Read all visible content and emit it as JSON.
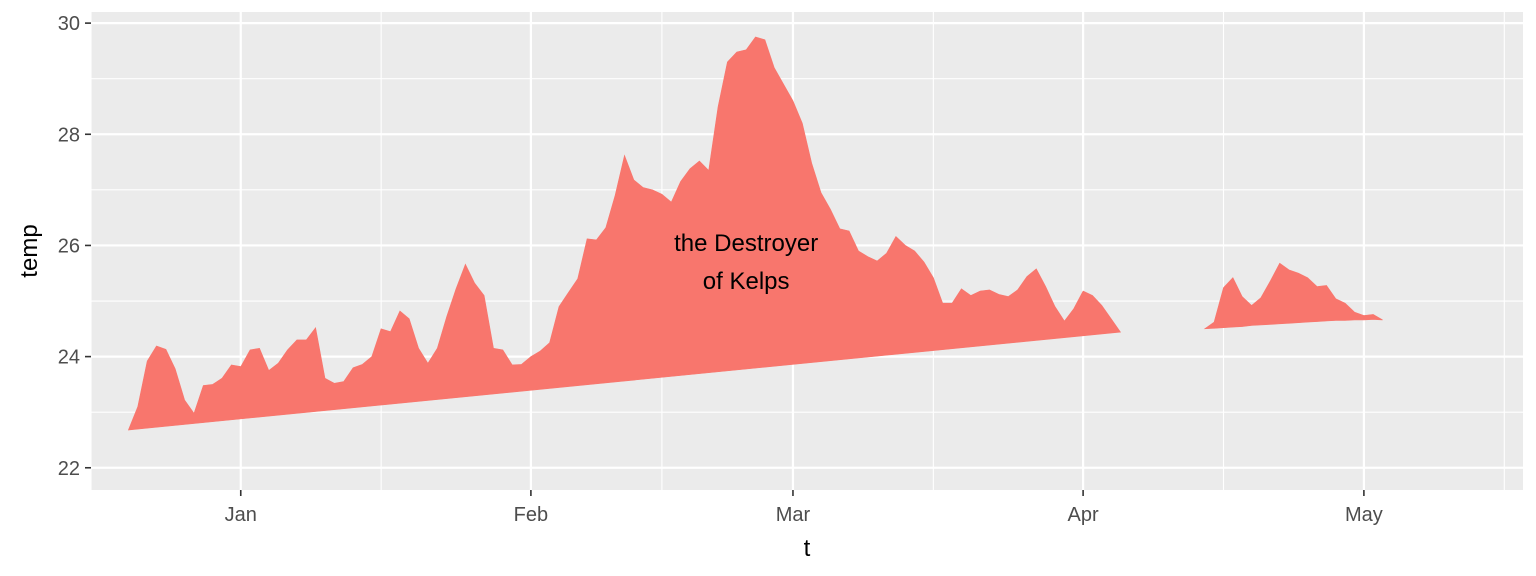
{
  "chart_data": {
    "type": "area",
    "xlabel": "t",
    "ylabel": "temp",
    "x_axis": {
      "type": "date",
      "range": [
        "2017-12-16",
        "2018-05-18"
      ],
      "tick_labels": [
        {
          "date": "2018-01-01",
          "label": "Jan"
        },
        {
          "date": "2018-02-01",
          "label": "Feb"
        },
        {
          "date": "2018-03-01",
          "label": "Mar"
        },
        {
          "date": "2018-04-01",
          "label": "Apr"
        },
        {
          "date": "2018-05-01",
          "label": "May"
        }
      ],
      "minor_breaks": [
        "2017-12-16",
        "2018-01-16",
        "2018-02-15",
        "2018-03-16",
        "2018-04-16",
        "2018-05-16"
      ]
    },
    "y_axis": {
      "range": [
        21.6,
        30.2
      ],
      "ticks": [
        22,
        24,
        26,
        28,
        30
      ],
      "minor_breaks": [
        23,
        25,
        27,
        29
      ]
    },
    "grid": true,
    "legend": "none",
    "fill_color": "#F8766D",
    "panel_color": "#EBEBEB",
    "series": [
      {
        "segment": 1,
        "x": [
          "2017-12-20",
          "2017-12-21",
          "2017-12-22",
          "2017-12-23",
          "2017-12-24",
          "2017-12-25",
          "2017-12-26",
          "2017-12-27",
          "2017-12-28",
          "2017-12-29",
          "2017-12-30",
          "2017-12-31",
          "2018-01-01",
          "2018-01-02",
          "2018-01-03",
          "2018-01-04",
          "2018-01-05",
          "2018-01-06",
          "2018-01-07",
          "2018-01-08",
          "2018-01-09",
          "2018-01-10",
          "2018-01-11",
          "2018-01-12",
          "2018-01-13",
          "2018-01-14",
          "2018-01-15",
          "2018-01-16",
          "2018-01-17",
          "2018-01-18",
          "2018-01-19",
          "2018-01-20",
          "2018-01-21",
          "2018-01-22",
          "2018-01-23",
          "2018-01-24",
          "2018-01-25",
          "2018-01-26",
          "2018-01-27",
          "2018-01-28",
          "2018-01-29",
          "2018-01-30",
          "2018-01-31",
          "2018-02-01",
          "2018-02-02",
          "2018-02-03",
          "2018-02-04",
          "2018-02-05",
          "2018-02-06",
          "2018-02-07",
          "2018-02-08",
          "2018-02-09",
          "2018-02-10",
          "2018-02-11",
          "2018-02-12",
          "2018-02-13",
          "2018-02-14",
          "2018-02-15",
          "2018-02-16",
          "2018-02-17",
          "2018-02-18",
          "2018-02-19",
          "2018-02-20",
          "2018-02-21",
          "2018-02-22",
          "2018-02-23",
          "2018-02-24",
          "2018-02-25",
          "2018-02-26",
          "2018-02-27",
          "2018-02-28",
          "2018-03-01",
          "2018-03-02",
          "2018-03-03",
          "2018-03-04",
          "2018-03-05",
          "2018-03-06",
          "2018-03-07",
          "2018-03-08",
          "2018-03-09",
          "2018-03-10",
          "2018-03-11",
          "2018-03-12",
          "2018-03-13",
          "2018-03-14",
          "2018-03-15",
          "2018-03-16",
          "2018-03-17",
          "2018-03-18",
          "2018-03-19",
          "2018-03-20",
          "2018-03-21",
          "2018-03-22",
          "2018-03-23",
          "2018-03-24",
          "2018-03-25",
          "2018-03-26",
          "2018-03-27",
          "2018-03-28",
          "2018-03-29",
          "2018-03-30",
          "2018-03-31",
          "2018-04-01",
          "2018-04-02",
          "2018-04-03",
          "2018-04-04",
          "2018-04-05",
          "2018-04-06",
          "2018-04-07"
        ],
        "temp": [
          22.68,
          23.1,
          23.92,
          24.19,
          24.13,
          23.78,
          23.22,
          22.98,
          23.48,
          23.5,
          23.61,
          23.85,
          23.82,
          24.12,
          24.15,
          23.75,
          23.88,
          24.12,
          24.3,
          24.3,
          24.52,
          23.61,
          23.52,
          23.55,
          23.8,
          23.86,
          24.0,
          24.5,
          24.45,
          24.82,
          24.68,
          24.15,
          23.88,
          24.15,
          24.72,
          25.22,
          25.66,
          25.32,
          25.1,
          24.15,
          24.12,
          23.85,
          23.86,
          24.0,
          24.1,
          24.25,
          24.9,
          25.15,
          25.4,
          26.12,
          26.1,
          26.32,
          26.9,
          27.62,
          27.18,
          27.04,
          27.0,
          26.92,
          26.78,
          27.15,
          27.38,
          27.52,
          27.35,
          28.5,
          29.3,
          29.48,
          29.52,
          29.75,
          29.7,
          29.2,
          28.9,
          28.6,
          28.2,
          27.48,
          26.95,
          26.65,
          26.3,
          26.26,
          25.9,
          25.8,
          25.72,
          25.86,
          26.16,
          26.0,
          25.9,
          25.7,
          25.42,
          24.96,
          24.96,
          25.22,
          25.1,
          25.18,
          25.2,
          25.12,
          25.08,
          25.2,
          25.44,
          25.58,
          25.26,
          24.9,
          24.64,
          24.86,
          25.18,
          25.1,
          24.92,
          24.68,
          24.44
        ],
        "baseline": [
          22.68,
          22.7,
          22.72,
          22.74,
          22.76,
          22.78,
          22.8,
          22.82,
          22.84,
          22.86,
          22.88,
          22.9,
          22.92,
          22.94,
          22.96,
          22.98,
          23.0,
          23.02,
          23.04,
          23.05,
          23.07,
          23.09,
          23.11,
          23.12,
          23.14,
          23.15,
          23.17,
          23.18,
          23.19,
          23.21,
          23.24,
          23.27,
          23.3,
          23.34,
          23.38,
          23.42,
          23.47,
          23.52,
          23.56,
          23.6,
          23.64,
          23.67,
          23.7,
          23.73,
          23.75,
          23.78,
          23.81,
          23.84,
          23.87,
          23.9,
          23.94,
          23.98,
          24.01,
          24.05,
          24.09,
          24.12,
          24.16,
          24.19,
          24.23,
          24.26,
          24.28,
          24.3,
          24.32,
          24.33,
          24.34,
          24.35,
          24.36,
          24.37,
          24.38,
          24.39,
          24.4,
          24.41,
          24.42,
          24.43,
          24.44,
          24.45,
          24.46,
          24.47,
          24.47,
          24.48,
          24.48,
          24.48,
          24.48,
          24.48,
          24.48,
          24.48,
          24.48,
          24.47,
          24.46,
          24.45,
          24.44,
          24.42,
          24.41,
          24.4,
          24.39,
          24.38,
          24.37,
          24.37,
          24.36,
          24.35,
          24.35,
          24.35,
          24.36,
          24.37,
          24.38,
          24.39,
          24.4,
          24.41,
          24.42
        ]
      },
      {
        "segment": 2,
        "x": [
          "2018-04-14",
          "2018-04-15",
          "2018-04-16",
          "2018-04-17",
          "2018-04-18",
          "2018-04-19",
          "2018-04-20",
          "2018-04-21",
          "2018-04-22",
          "2018-04-23",
          "2018-04-24",
          "2018-04-25",
          "2018-04-26",
          "2018-04-27",
          "2018-04-28",
          "2018-04-29",
          "2018-04-30",
          "2018-05-01",
          "2018-05-02",
          "2018-05-03"
        ],
        "temp": [
          24.5,
          24.62,
          25.24,
          25.42,
          25.08,
          24.92,
          25.06,
          25.36,
          25.68,
          25.56,
          25.5,
          25.42,
          25.26,
          25.28,
          25.04,
          24.96,
          24.8,
          24.74,
          24.76,
          24.66
        ],
        "baseline": [
          24.5,
          24.51,
          24.52,
          24.53,
          24.54,
          24.56,
          24.57,
          24.58,
          24.59,
          24.6,
          24.61,
          24.62,
          24.63,
          24.64,
          24.65,
          24.65,
          24.66,
          24.66,
          24.67,
          24.66
        ]
      }
    ],
    "annotations": [
      {
        "text_lines": [
          "the Destroyer",
          "of Kelps"
        ],
        "x": "2018-02-24",
        "y": 25.7
      }
    ]
  }
}
